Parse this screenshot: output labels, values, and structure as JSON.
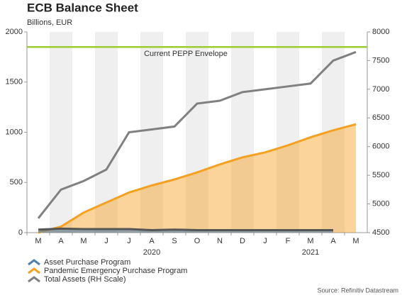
{
  "chart_data": {
    "type": "area-line",
    "title": "ECB Balance Sheet",
    "subtitle": "Billions, EUR",
    "source": "Source: Refinitiv Datastream",
    "categories": [
      "M",
      "A",
      "M",
      "J",
      "J",
      "A",
      "S",
      "O",
      "N",
      "D",
      "J",
      "F",
      "M",
      "A",
      "M"
    ],
    "year_labels": [
      "2020",
      "2021"
    ],
    "series": [
      {
        "name": "Asset Purchase Program",
        "kind": "area",
        "color": "#4f7fb0",
        "values": [
          30,
          40,
          35,
          35,
          35,
          25,
          30,
          25,
          25,
          25,
          25,
          25,
          25,
          25,
          null
        ]
      },
      {
        "name": "Pandemic Emergency Purchase Program",
        "kind": "area",
        "color": "#f5a020",
        "values": [
          0,
          60,
          200,
          300,
          400,
          470,
          530,
          600,
          680,
          750,
          800,
          870,
          950,
          1020,
          1080
        ]
      },
      {
        "name": "Total Assets (RH Scale)",
        "kind": "line",
        "axis": "y2",
        "color": "#808080",
        "values": [
          4750,
          5250,
          5400,
          5600,
          6250,
          6300,
          6350,
          6750,
          6800,
          6950,
          7000,
          7050,
          7100,
          7500,
          7650
        ]
      }
    ],
    "reference_line": {
      "value": 1850,
      "label": "Current PEPP Envelope",
      "color": "#9acd32"
    },
    "ylim": [
      0,
      2000
    ],
    "yticks": [
      0,
      500,
      1000,
      1500,
      2000
    ],
    "y2lim": [
      4500,
      8000
    ],
    "y2ticks": [
      4500,
      5000,
      5500,
      6000,
      6500,
      7000,
      7500,
      8000
    ]
  }
}
